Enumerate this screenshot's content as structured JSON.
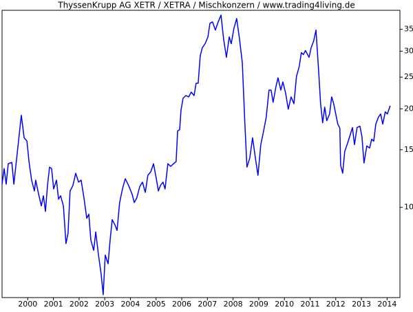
{
  "chart_data": {
    "type": "line",
    "title": "ThyssenKrupp AG XETR / XETRA / Mischkonzern / www.trading4living.de",
    "color": "#0000ff",
    "y_log_scale": true,
    "grid": false,
    "xlim": [
      1999,
      2014.5
    ],
    "xticks": [
      2000,
      2001,
      2002,
      2003,
      2004,
      2005,
      2006,
      2007,
      2008,
      2009,
      2010,
      2011,
      2012,
      2013,
      2014
    ],
    "ylim": [
      5.3,
      40
    ],
    "yticks": [
      10,
      15,
      20,
      25,
      30,
      35
    ],
    "x": [
      1999.0,
      1999.08,
      1999.16,
      1999.24,
      1999.38,
      1999.46,
      1999.54,
      1999.67,
      1999.75,
      1999.86,
      1999.97,
      2000.05,
      2000.15,
      2000.26,
      2000.31,
      2000.42,
      2000.53,
      2000.61,
      2000.69,
      2000.77,
      2000.85,
      2000.93,
      2001.01,
      2001.12,
      2001.2,
      2001.28,
      2001.39,
      2001.49,
      2001.57,
      2001.65,
      2001.76,
      2001.87,
      2001.98,
      2002.08,
      2002.19,
      2002.3,
      2002.38,
      2002.46,
      2002.57,
      2002.65,
      2002.75,
      2002.86,
      2002.94,
      2003.02,
      2003.13,
      2003.21,
      2003.29,
      2003.4,
      2003.48,
      2003.58,
      2003.69,
      2003.8,
      2003.93,
      2004.07,
      2004.15,
      2004.25,
      2004.36,
      2004.47,
      2004.58,
      2004.68,
      2004.79,
      2004.9,
      2005.01,
      2005.09,
      2005.17,
      2005.27,
      2005.35,
      2005.46,
      2005.57,
      2005.68,
      2005.78,
      2005.84,
      2005.92,
      2005.97,
      2006.05,
      2006.16,
      2006.27,
      2006.37,
      2006.48,
      2006.56,
      2006.64,
      2006.72,
      2006.8,
      2006.91,
      2007.02,
      2007.1,
      2007.2,
      2007.31,
      2007.42,
      2007.53,
      2007.63,
      2007.74,
      2007.85,
      2007.93,
      2008.03,
      2008.14,
      2008.25,
      2008.36,
      2008.46,
      2008.54,
      2008.65,
      2008.76,
      2008.87,
      2008.97,
      2009.08,
      2009.19,
      2009.29,
      2009.4,
      2009.48,
      2009.56,
      2009.67,
      2009.75,
      2009.86,
      2009.94,
      2010.05,
      2010.15,
      2010.26,
      2010.37,
      2010.47,
      2010.58,
      2010.66,
      2010.74,
      2010.82,
      2010.96,
      2011.04,
      2011.14,
      2011.23,
      2011.33,
      2011.41,
      2011.49,
      2011.57,
      2011.65,
      2011.76,
      2011.84,
      2011.92,
      2012.0,
      2012.08,
      2012.16,
      2012.19,
      2012.27,
      2012.35,
      2012.46,
      2012.57,
      2012.65,
      2012.73,
      2012.83,
      2012.94,
      2013.02,
      2013.1,
      2013.21,
      2013.32,
      2013.4,
      2013.48,
      2013.56,
      2013.66,
      2013.75,
      2013.83,
      2013.93,
      2014.01,
      2014.12
    ],
    "values": [
      11.77,
      13.14,
      11.77,
      13.59,
      13.72,
      11.77,
      13.46,
      16.71,
      19.11,
      16.31,
      15.93,
      13.79,
      12.11,
      11.22,
      12.11,
      11.01,
      10.1,
      10.85,
      9.72,
      11.66,
      13.27,
      13.14,
      11.38,
      12.11,
      10.59,
      10.85,
      10.1,
      7.75,
      8.33,
      11.22,
      11.66,
      12.71,
      11.94,
      12.11,
      10.69,
      9.26,
      9.53,
      7.94,
      7.39,
      8.41,
      7.21,
      6.25,
      5.41,
      7.15,
      6.72,
      7.94,
      9.17,
      8.83,
      8.5,
      10.34,
      11.38,
      12.23,
      11.66,
      10.95,
      10.34,
      10.69,
      11.55,
      11.94,
      11.11,
      12.53,
      12.83,
      13.59,
      12.23,
      11.22,
      11.66,
      11.94,
      11.38,
      13.59,
      13.34,
      13.59,
      13.79,
      17.12,
      17.28,
      19.76,
      21.54,
      21.96,
      21.75,
      22.5,
      21.96,
      23.94,
      23.94,
      29.01,
      30.73,
      31.62,
      33.18,
      36.52,
      36.87,
      34.81,
      36.87,
      38.68,
      32.7,
      28.73,
      33.18,
      31.62,
      35.15,
      37.76,
      32.7,
      27.65,
      17.96,
      13.27,
      14.13,
      16.31,
      14.13,
      12.53,
      15.55,
      17.12,
      18.84,
      22.82,
      22.82,
      20.94,
      23.38,
      24.88,
      22.82,
      24.17,
      22.28,
      19.95,
      21.75,
      20.73,
      25.12,
      27.0,
      29.71,
      29.29,
      30.14,
      28.73,
      30.73,
      32.24,
      34.81,
      26.35,
      20.73,
      18.13,
      20.24,
      18.39,
      19.29,
      21.75,
      20.73,
      19.29,
      17.96,
      17.45,
      13.46,
      12.71,
      14.82,
      15.7,
      16.71,
      17.53,
      15.55,
      17.53,
      17.7,
      16.47,
      13.66,
      15.4,
      15.18,
      16.15,
      15.93,
      17.96,
      18.84,
      19.29,
      17.96,
      19.58,
      19.29,
      20.44
    ]
  }
}
